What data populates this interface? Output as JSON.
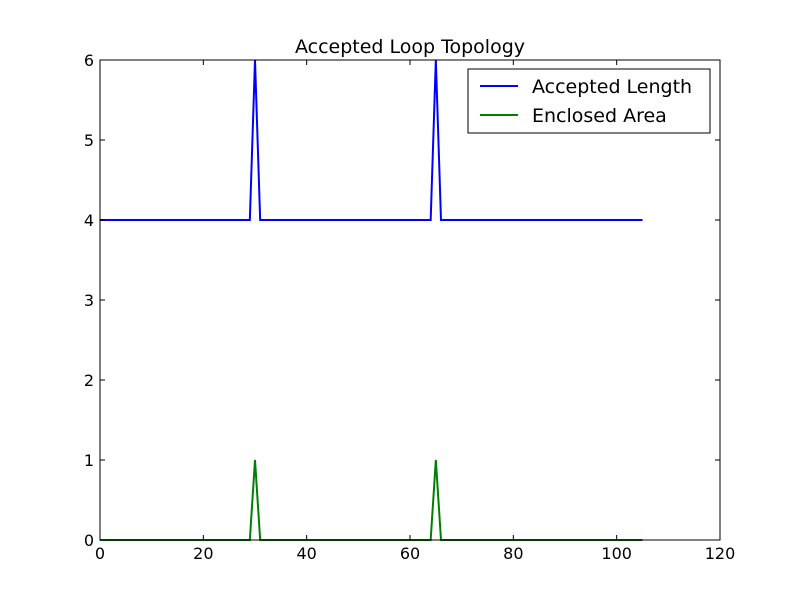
{
  "chart_data": {
    "type": "line",
    "title": "Accepted Loop Topology",
    "xlabel": "",
    "ylabel": "",
    "xlim": [
      0,
      120
    ],
    "ylim": [
      0,
      6
    ],
    "xticks": [
      0,
      20,
      40,
      60,
      80,
      100,
      120
    ],
    "yticks": [
      0,
      1,
      2,
      3,
      4,
      5,
      6
    ],
    "grid": false,
    "legend_position": "top-right",
    "series": [
      {
        "name": "Accepted Length",
        "color": "#0000ff",
        "points": [
          [
            0,
            4
          ],
          [
            29,
            4
          ],
          [
            30,
            6
          ],
          [
            31,
            4
          ],
          [
            64,
            4
          ],
          [
            65,
            6
          ],
          [
            66,
            4
          ],
          [
            105,
            4
          ]
        ]
      },
      {
        "name": "Enclosed Area",
        "color": "#008000",
        "points": [
          [
            0,
            0
          ],
          [
            29,
            0
          ],
          [
            30,
            1
          ],
          [
            31,
            0
          ],
          [
            64,
            0
          ],
          [
            65,
            1
          ],
          [
            66,
            0
          ],
          [
            105,
            0
          ]
        ]
      }
    ]
  }
}
